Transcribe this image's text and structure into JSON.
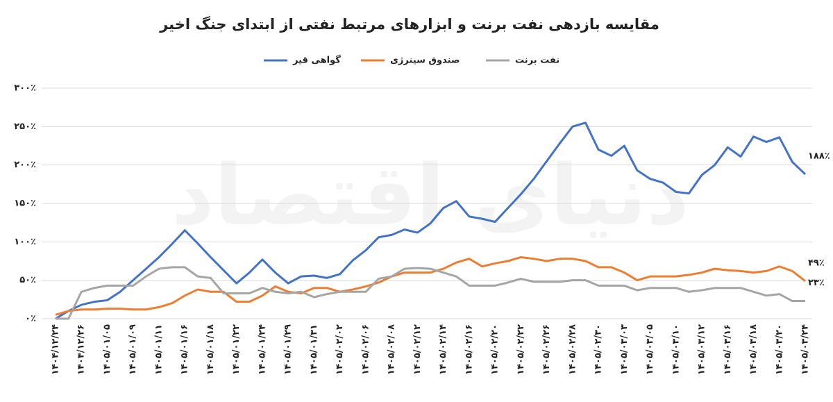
{
  "chart_data": {
    "type": "line",
    "title": "مقایسه بازدهی نفت برنت و ابزارهای مرتبط نفتی از ابتدای جنگ اخیر",
    "watermark": "دنیای اقتصاد",
    "categories": [
      "۱۴۰۴/۱۲/۲۴",
      null,
      "۱۴۰۴/۱۲/۲۶",
      null,
      "۱۴۰۵/۰۱/۰۵",
      null,
      "۱۴۰۵/۰۱/۰۹",
      null,
      "۱۴۰۵/۰۱/۱۱",
      null,
      "۱۴۰۵/۰۱/۱۶",
      null,
      "۱۴۰۵/۰۱/۱۸",
      null,
      "۱۴۰۵/۰۱/۲۲",
      null,
      "۱۴۰۵/۰۱/۲۴",
      null,
      "۱۴۰۵/۰۱/۲۹",
      null,
      "۱۴۰۵/۰۱/۳۱",
      null,
      "۱۴۰۵/۰۲/۰۲",
      null,
      "۱۴۰۵/۰۲/۰۶",
      null,
      "۱۴۰۵/۰۲/۰۸",
      null,
      "۱۴۰۵/۰۲/۱۲",
      null,
      "۱۴۰۵/۰۲/۱۴",
      null,
      "۱۴۰۵/۰۲/۱۶",
      null,
      "۱۴۰۵/۰۲/۲۰",
      null,
      "۱۴۰۵/۰۲/۲۲",
      null,
      "۱۴۰۵/۰۲/۲۶",
      null,
      "۱۴۰۵/۰۲/۲۸",
      null,
      "۱۴۰۵/۰۲/۳۰",
      null,
      "۱۴۰۵/۰۳/۰۳",
      null,
      "۱۴۰۵/۰۳/۰۵",
      null,
      "۱۴۰۵/۰۳/۱۰",
      null,
      "۱۴۰۵/۰۳/۱۲",
      null,
      "۱۴۰۵/۰۳/۱۶",
      null,
      "۱۴۰۵/۰۳/۱۸",
      null,
      "۱۴۰۵/۰۳/۲۰",
      null,
      "۱۴۰۵/۰۳/۲۴"
    ],
    "series": [
      {
        "name": "گواهی قیر",
        "color": "#4472c4",
        "end_label": "۱۸۸٪",
        "values": [
          0,
          10,
          18,
          22,
          24,
          35,
          50,
          65,
          80,
          97,
          115,
          98,
          80,
          63,
          46,
          60,
          77,
          60,
          46,
          55,
          56,
          53,
          58,
          76,
          89,
          106,
          109,
          116,
          112,
          124,
          144,
          153,
          133,
          130,
          126,
          144,
          162,
          182,
          205,
          228,
          250,
          255,
          220,
          212,
          225,
          193,
          182,
          177,
          165,
          163,
          187,
          200,
          223,
          211,
          237,
          230,
          236,
          204,
          188
        ]
      },
      {
        "name": "صندوق سینرژی",
        "color": "#ed7d31",
        "end_label": "۴۹٪",
        "values": [
          5,
          10,
          12,
          12,
          13,
          13,
          12,
          12,
          15,
          20,
          30,
          38,
          35,
          35,
          22,
          22,
          30,
          42,
          35,
          33,
          40,
          40,
          35,
          38,
          42,
          47,
          55,
          60,
          60,
          60,
          65,
          73,
          78,
          68,
          72,
          75,
          80,
          78,
          75,
          78,
          78,
          75,
          67,
          67,
          60,
          50,
          55,
          55,
          55,
          57,
          60,
          65,
          63,
          62,
          60,
          62,
          68,
          62,
          49
        ]
      },
      {
        "name": "نفت برنت",
        "color": "#a5a5a5",
        "end_label": "۲۳٪",
        "values": [
          0,
          0,
          35,
          40,
          43,
          43,
          43,
          55,
          65,
          67,
          67,
          55,
          53,
          33,
          33,
          33,
          40,
          35,
          33,
          35,
          28,
          32,
          35,
          35,
          35,
          52,
          55,
          65,
          66,
          65,
          60,
          55,
          43,
          43,
          43,
          47,
          52,
          48,
          48,
          48,
          50,
          50,
          43,
          43,
          43,
          37,
          40,
          40,
          40,
          35,
          37,
          40,
          40,
          40,
          35,
          30,
          32,
          23,
          23
        ]
      }
    ],
    "ylim": [
      0,
      300
    ],
    "yticks": [
      {
        "value": 0,
        "label": "۰٪"
      },
      {
        "value": 50,
        "label": "۵۰٪"
      },
      {
        "value": 100,
        "label": "۱۰۰٪"
      },
      {
        "value": 150,
        "label": "۱۵۰٪"
      },
      {
        "value": 200,
        "label": "۲۰۰٪"
      },
      {
        "value": 250,
        "label": "۲۵۰٪"
      },
      {
        "value": 300,
        "label": "۳۰۰٪"
      }
    ],
    "grid": true,
    "legend": "top"
  }
}
